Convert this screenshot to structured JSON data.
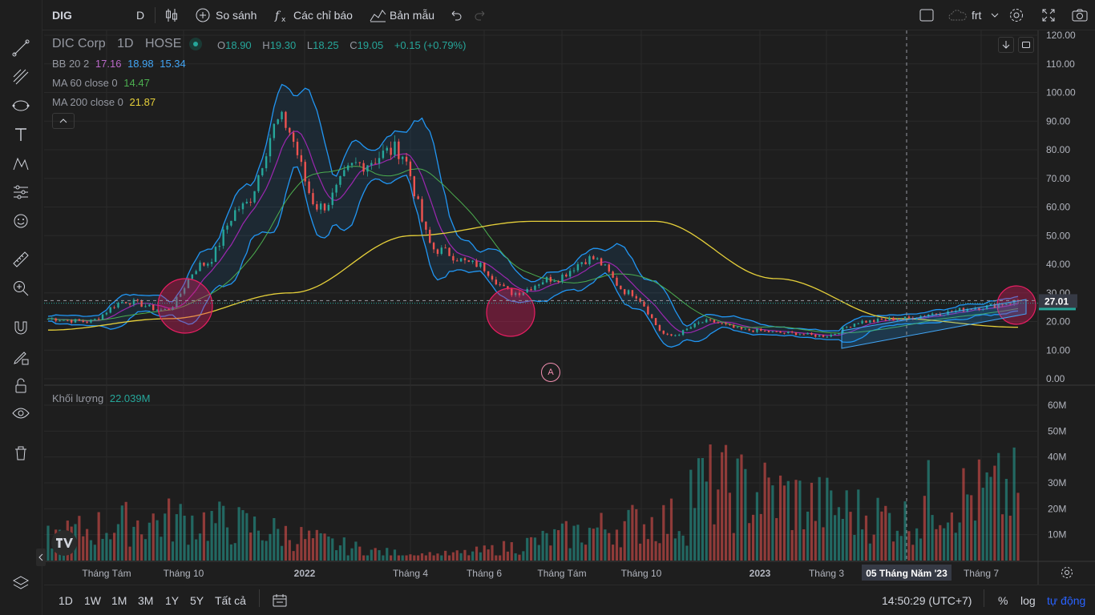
{
  "topbar": {
    "symbol": "DIG",
    "interval": "D",
    "compare": "So sánh",
    "indicators": "Các chỉ báo",
    "templates": "Bản mẫu",
    "layout_name": "frt"
  },
  "legend": {
    "name": "DIC Corp",
    "interval": "1D",
    "exchange": "HOSE",
    "ohlc_o_label": "O",
    "ohlc_o": "18.90",
    "ohlc_h_label": "H",
    "ohlc_h": "19.30",
    "ohlc_l_label": "L",
    "ohlc_l": "18.25",
    "ohlc_c_label": "C",
    "ohlc_c": "19.05",
    "change": "+0.15 (+0.79%)",
    "bb_label": "BB 20 2",
    "bb_mid": "17.16",
    "bb_up": "18.98",
    "bb_low": "15.34",
    "ma60_label": "MA 60 close 0",
    "ma60": "14.47",
    "ma200_label": "MA 200 close 0",
    "ma200": "21.87",
    "vol_label": "Khối lượng",
    "vol_value": "22.039M",
    "event_marker": "A"
  },
  "colors": {
    "up": "#26a69a",
    "down": "#ef5350",
    "bb_band": "#2196f3",
    "bb_basis": "#9c27b0",
    "ma60": "#4caf50",
    "ma200": "#e6d03a",
    "bg": "#1e1e1e",
    "grid": "#2a2a2a"
  },
  "price_axis_labels": [
    "120.00",
    "110.00",
    "100.00",
    "90.00",
    "80.00",
    "70.00",
    "60.00",
    "50.00",
    "40.00",
    "30.00",
    "20.00",
    "10.00",
    "0.00"
  ],
  "volume_axis_labels": [
    "60M",
    "50M",
    "40M",
    "30M",
    "20M",
    "10M"
  ],
  "last_price_label": "27.01",
  "time_axis_labels": [
    "Tháng Tám",
    "Tháng 10",
    "2022",
    "Tháng 4",
    "Tháng 6",
    "Tháng Tám",
    "Tháng 10",
    "2023",
    "Tháng 3",
    "Tháng 7"
  ],
  "crosshair_date": "05 Tháng Năm '23",
  "bottombar": {
    "ranges": [
      "1D",
      "1W",
      "1M",
      "3M",
      "1Y",
      "5Y",
      "Tất cả"
    ],
    "clock": "14:50:29 (UTC+7)",
    "pct": "%",
    "log": "log",
    "auto": "tự động"
  },
  "chart_data": {
    "type": "line",
    "description_series": [
      {
        "name": "DIG close",
        "x": [
          "2021-07",
          "2021-08",
          "2021-09",
          "2021-10",
          "2021-11",
          "2021-12",
          "2022-01",
          "2022-02",
          "2022-03",
          "2022-04",
          "2022-05",
          "2022-06",
          "2022-07",
          "2022-08",
          "2022-09",
          "2022-10",
          "2022-11",
          "2022-12",
          "2023-01",
          "2023-02",
          "2023-03",
          "2023-04",
          "2023-05",
          "2023-06",
          "2023-07",
          "2023-08"
        ],
        "y": [
          21,
          20,
          27,
          24,
          40,
          60,
          90,
          60,
          75,
          80,
          45,
          40,
          30,
          35,
          42,
          30,
          15,
          20,
          17,
          16,
          15,
          20,
          21,
          23,
          25,
          27
        ]
      },
      {
        "name": "MA 200",
        "x": [
          "2021-07",
          "2021-10",
          "2022-01",
          "2022-04",
          "2022-07",
          "2022-10",
          "2023-01",
          "2023-04",
          "2023-08"
        ],
        "y": [
          17,
          21,
          30,
          50,
          55,
          55,
          35,
          21,
          18
        ]
      }
    ],
    "ylim": [
      0,
      120
    ]
  }
}
